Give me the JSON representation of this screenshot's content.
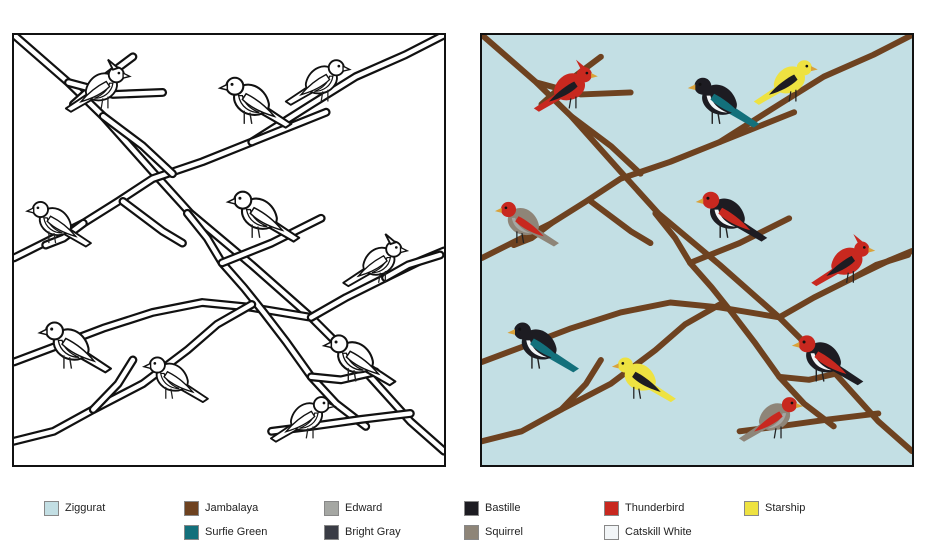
{
  "palette": [
    {
      "name": "Ziggurat",
      "hex": "#c3dfe4"
    },
    {
      "name": "Jambalaya",
      "hex": "#6e4220"
    },
    {
      "name": "Edward",
      "hex": "#a5a7a3"
    },
    {
      "name": "Bastille",
      "hex": "#1d1c22"
    },
    {
      "name": "Thunderbird",
      "hex": "#c8281f"
    },
    {
      "name": "Starship",
      "hex": "#eee241"
    },
    {
      "name": "Surfie Green",
      "hex": "#13707b"
    },
    {
      "name": "Bright Gray",
      "hex": "#3a3c45"
    },
    {
      "name": "Squirrel",
      "hex": "#8e8578"
    },
    {
      "name": "Catskill White",
      "hex": "#f2f5f7"
    }
  ],
  "panels": {
    "outline": "outline",
    "colored": "colored"
  },
  "birds": [
    {
      "species": "cardinal",
      "colors": {
        "body": "#c8281f",
        "accent": "#1d1c22",
        "belly": "#c8281f"
      }
    },
    {
      "species": "magpie",
      "colors": {
        "body": "#1d1c22",
        "accent": "#13707b",
        "belly": "#f2f5f7"
      }
    },
    {
      "species": "goldfinch",
      "colors": {
        "body": "#eee241",
        "accent": "#1d1c22",
        "belly": "#eee241"
      }
    },
    {
      "species": "finch",
      "colors": {
        "body": "#8e8578",
        "accent": "#c8281f",
        "belly": "#a5a7a3"
      }
    },
    {
      "species": "woodpecker",
      "colors": {
        "body": "#1d1c22",
        "accent": "#c8281f",
        "belly": "#f2f5f7"
      }
    }
  ]
}
